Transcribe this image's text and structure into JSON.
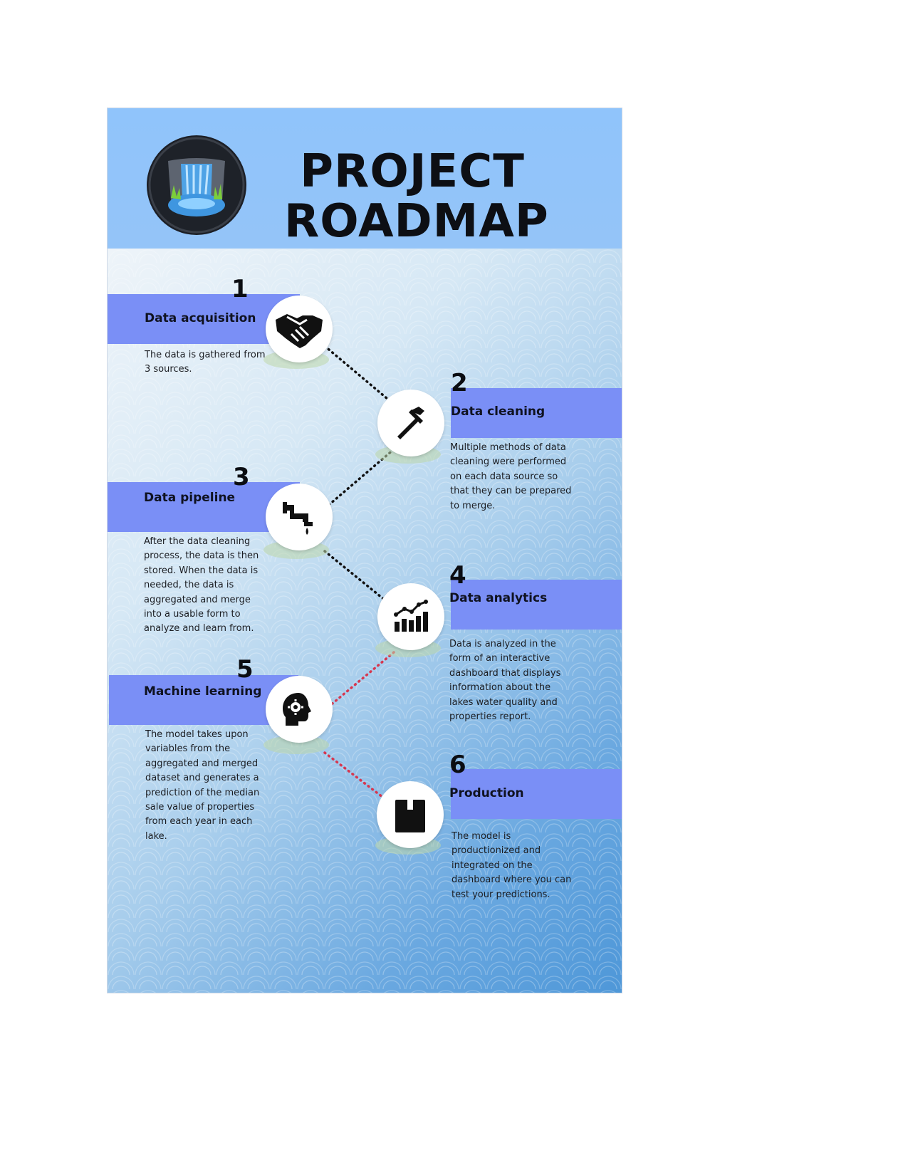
{
  "header": {
    "title_line1": "PROJECT",
    "title_line2": "ROADMAP",
    "logo_icon": "waterfall-lake-logo"
  },
  "colors": {
    "header_bg": "#90c4fb",
    "band": "#7a8ff6",
    "connector_black": "#111111",
    "connector_red": "#d6374f"
  },
  "steps": [
    {
      "number": "1",
      "title": "Data acquisition",
      "icon": "handshake-icon",
      "description": "The data is gathered from 3 sources."
    },
    {
      "number": "2",
      "title": "Data cleaning",
      "icon": "hammer-icon",
      "description": "Multiple methods of data cleaning were performed on each data source so that they can be prepared to merge."
    },
    {
      "number": "3",
      "title": "Data pipeline",
      "icon": "pipe-drip-icon",
      "description": "After the data cleaning process, the data is then stored. When the data is needed, the data is aggregated and merge into a usable form to analyze and learn from."
    },
    {
      "number": "4",
      "title": "Data analytics",
      "icon": "bar-chart-trend-icon",
      "description": "Data is analyzed in the form of an interactive dashboard that displays information about the lakes water quality and properties report."
    },
    {
      "number": "5",
      "title": "Machine learning",
      "icon": "head-gear-icon",
      "description": "The model takes upon variables from the aggregated and merged dataset and generates a prediction of the median sale value of properties from each year in each lake."
    },
    {
      "number": "6",
      "title": "Production",
      "icon": "box-icon",
      "description": "The model is productionized and integrated on the dashboard where you can test your predictions."
    }
  ]
}
